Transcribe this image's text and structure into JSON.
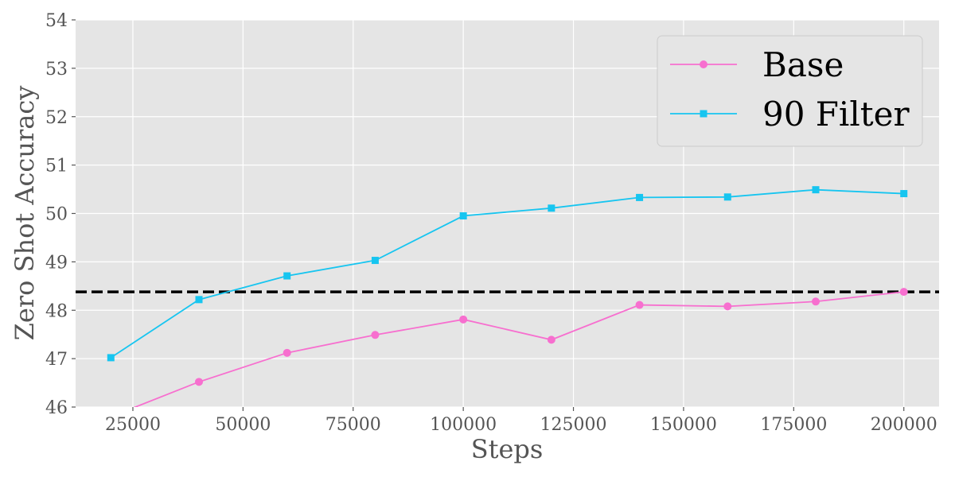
{
  "chart_data": {
    "type": "line",
    "title": "",
    "xlabel": "Steps",
    "ylabel": "Zero Shot Accuracy",
    "xlim": [
      12000,
      208000
    ],
    "ylim": [
      46,
      54
    ],
    "x_ticks": [
      25000,
      50000,
      75000,
      100000,
      125000,
      150000,
      175000,
      200000
    ],
    "x_tick_labels": [
      "25000",
      "50000",
      "75000",
      "100000",
      "125000",
      "150000",
      "175000",
      "200000"
    ],
    "y_ticks": [
      46,
      47,
      48,
      49,
      50,
      51,
      52,
      53,
      54
    ],
    "y_tick_labels": [
      "46",
      "47",
      "48",
      "49",
      "50",
      "51",
      "52",
      "53",
      "54"
    ],
    "grid": true,
    "legend_position": "top-right",
    "series": [
      {
        "name": "Base",
        "color": "#f76fcf",
        "marker": "circle",
        "x": [
          20000,
          40000,
          60000,
          80000,
          100000,
          120000,
          140000,
          160000,
          180000,
          200000
        ],
        "y": [
          45.8,
          46.52,
          47.12,
          47.49,
          47.81,
          47.39,
          48.11,
          48.08,
          48.18,
          48.38
        ]
      },
      {
        "name": "90 Filter",
        "color": "#17c5f0",
        "marker": "square",
        "x": [
          20000,
          40000,
          60000,
          80000,
          100000,
          120000,
          140000,
          160000,
          180000,
          200000
        ],
        "y": [
          47.02,
          48.22,
          48.71,
          49.03,
          49.95,
          50.11,
          50.33,
          50.34,
          50.49,
          50.41
        ]
      }
    ],
    "reference_line": {
      "y": 48.38,
      "style": "dashed",
      "color": "#000000"
    }
  }
}
